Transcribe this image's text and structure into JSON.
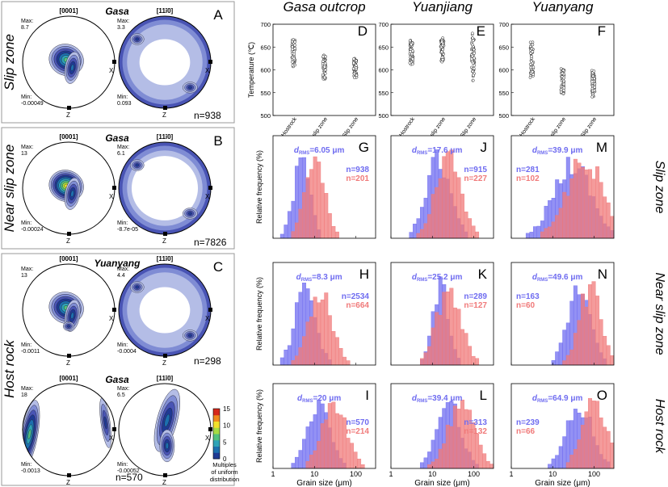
{
  "left_panels": {
    "row_labels": [
      "Slip zone",
      "Near slip zone",
      "Host rock"
    ],
    "legend": {
      "ticks": [
        "0",
        "5",
        "10",
        "15"
      ],
      "label_lines": [
        "Multiples",
        "of uniform",
        "distribution"
      ]
    },
    "panels": [
      {
        "letter": "A",
        "site": "Gasa",
        "n": "n=938",
        "pf1": {
          "title": "[0001]",
          "max_label": "Max:",
          "max": "8.7",
          "min_label": "Min:",
          "min": "-0.00049"
        },
        "pf2": {
          "title": "[11ī0]",
          "max_label": "Max:",
          "max": "3.3",
          "min_label": "Min:",
          "min": "0.093"
        }
      },
      {
        "letter": "B",
        "site": "Gasa",
        "n": "n=7826",
        "pf1": {
          "title": "[0001]",
          "max_label": "Max:",
          "max": "13",
          "min_label": "Min:",
          "min": "-0.00024"
        },
        "pf2": {
          "title": "[11ī0]",
          "max_label": "Max:",
          "max": "6.1",
          "min_label": "Min:",
          "min": "-8.7e-05"
        }
      },
      {
        "letter": "C",
        "site": "Yuanyang",
        "n": "n=298",
        "pf1": {
          "title": "[0001]",
          "max_label": "Max:",
          "max": "13",
          "min_label": "Min:",
          "min": "-0.0011"
        },
        "pf2": {
          "title": "[11ī0]",
          "max_label": "Max:",
          "max": "4.4",
          "min_label": "Min:",
          "min": "-0.0004"
        }
      },
      {
        "letter": "",
        "site": "Gasa",
        "n": "n=570",
        "pf1": {
          "title": "[0001]",
          "max_label": "Max:",
          "max": "18",
          "min_label": "Min:",
          "min": "-0.0013"
        },
        "pf2": {
          "title": "[11ī0]",
          "max_label": "Max:",
          "max": "6.5",
          "min_label": "Min:",
          "min": "-0.00052"
        }
      }
    ]
  },
  "chart_data": {
    "columns": [
      "Gasa outcrop",
      "Yuanjiang",
      "Yuanyang"
    ],
    "row_labels": [
      "Slip zone",
      "Near slip zone",
      "Host rock"
    ],
    "temperature_charts": {
      "type": "scatter",
      "ylabel": "Temperature (℃)",
      "ylim": [
        500,
        700
      ],
      "yticks": [
        "500",
        "550",
        "600",
        "650",
        "700"
      ],
      "categories": [
        "Hostrock",
        "Near slip zone",
        "Slip zone"
      ],
      "panels": [
        {
          "letter": "D",
          "ranges": [
            [
              605,
              668
            ],
            [
              580,
              632
            ],
            [
              582,
              625
            ]
          ]
        },
        {
          "letter": "E",
          "ranges": [
            [
              612,
              665
            ],
            [
              615,
              670
            ],
            [
              575,
              685
            ]
          ]
        },
        {
          "letter": "F",
          "ranges": [
            [
              583,
              662
            ],
            [
              545,
              603
            ],
            [
              540,
              600
            ]
          ]
        }
      ]
    },
    "histograms": {
      "type": "bar",
      "xlabel": "Grain size (μm)",
      "ylabel": "Relative frequency (%)",
      "xscale": "log",
      "xlim": [
        1,
        300
      ],
      "xticks": [
        "1",
        "10",
        "100"
      ],
      "series_colors": [
        "#6f6cf0",
        "#f07a7a"
      ],
      "panels": [
        {
          "letter": "G",
          "drms": "6.05",
          "n_blue": "n=938",
          "n_red": "n=201",
          "blue_mu": 5,
          "blue_sd": 0.2,
          "red_mu": 10,
          "red_sd": 0.24
        },
        {
          "letter": "J",
          "drms": "17.6",
          "n_blue": "n=915",
          "n_red": "n=227",
          "blue_mu": 14,
          "blue_sd": 0.3,
          "red_mu": 25,
          "red_sd": 0.32
        },
        {
          "letter": "M",
          "drms": "39.9",
          "n_blue": "n=281",
          "n_red": "n=102",
          "blue_mu": 30,
          "blue_sd": 0.45,
          "red_mu": 60,
          "red_sd": 0.45
        },
        {
          "letter": "H",
          "drms": "8.3",
          "n_blue": "n=2534",
          "n_red": "n=664",
          "blue_mu": 6,
          "blue_sd": 0.25,
          "red_mu": 14,
          "red_sd": 0.28
        },
        {
          "letter": "K",
          "drms": "25.2",
          "n_blue": "n=289",
          "n_red": "n=127",
          "blue_mu": 16,
          "blue_sd": 0.2,
          "red_mu": 25,
          "red_sd": 0.3
        },
        {
          "letter": "N",
          "drms": "49.6",
          "n_blue": "n=163",
          "n_red": "n=60",
          "blue_mu": 45,
          "blue_sd": 0.28,
          "red_mu": 80,
          "red_sd": 0.26
        },
        {
          "letter": "I",
          "drms": "20",
          "n_blue": "n=570",
          "n_red": "n=214",
          "blue_mu": 13,
          "blue_sd": 0.28,
          "red_mu": 30,
          "red_sd": 0.3
        },
        {
          "letter": "L",
          "drms": "39.4",
          "n_blue": "n=313",
          "n_red": "n=132",
          "blue_mu": 25,
          "blue_sd": 0.3,
          "red_mu": 50,
          "red_sd": 0.32
        },
        {
          "letter": "O",
          "drms": "64.9",
          "n_blue": "n=239",
          "n_red": "n=66",
          "blue_mu": 45,
          "blue_sd": 0.32,
          "red_mu": 100,
          "red_sd": 0.3
        }
      ]
    }
  },
  "drms_symbol": "d",
  "drms_sub": "RMS",
  "drms_unit": " μm",
  "pf_axis_x": "X",
  "pf_axis_z": "Z"
}
